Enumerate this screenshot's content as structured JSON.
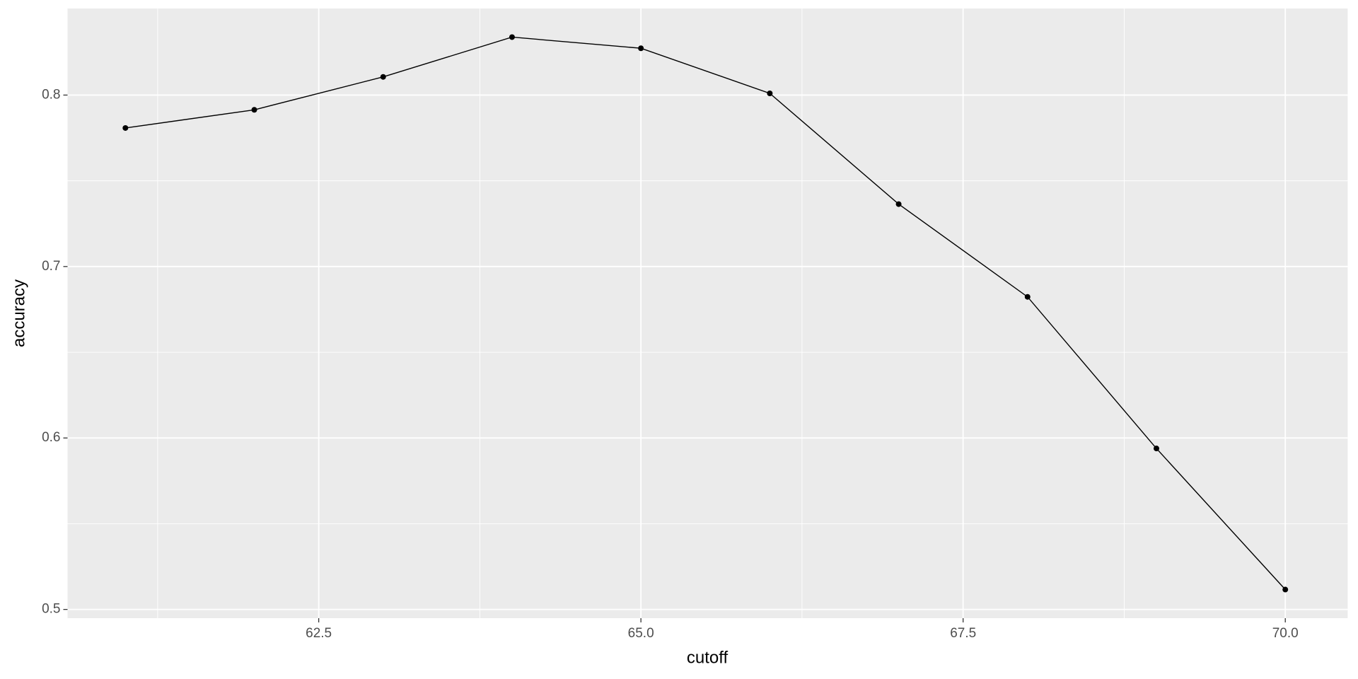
{
  "chart_data": {
    "type": "line",
    "x_label": "cutoff",
    "y_label": "accuracy",
    "x": [
      61,
      62,
      63,
      64,
      65,
      66,
      67,
      68,
      69,
      70
    ],
    "series": [
      {
        "color": "#000000",
        "values": [
          0.7808,
          0.7914,
          0.8106,
          0.8338,
          0.8273,
          0.801,
          0.7364,
          0.6823,
          0.5939,
          0.5116
        ]
      }
    ],
    "xlim": [
      60.551,
      70.484
    ],
    "ylim": [
      0.4949,
      0.8505
    ],
    "xticks": [
      {
        "value": 62.5,
        "label": "62.5"
      },
      {
        "value": 65,
        "label": "65.0"
      },
      {
        "value": 67.5,
        "label": "67.5"
      },
      {
        "value": 70,
        "label": "70.0"
      }
    ],
    "yticks": [
      0.5,
      0.6,
      0.7,
      0.8
    ],
    "xminor": [
      61.25,
      63.75,
      66.25,
      68.75
    ],
    "yminor": [
      0.55,
      0.65,
      0.75
    ],
    "grid": true,
    "panel_color": "#ebebeb",
    "grid_color": "#ffffff"
  }
}
